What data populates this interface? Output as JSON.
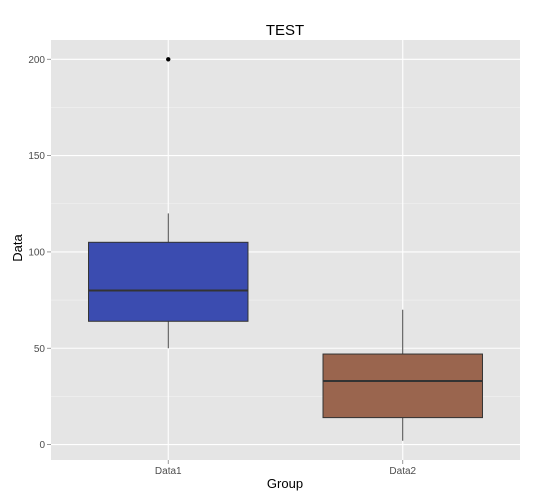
{
  "chart_data": {
    "type": "boxplot",
    "title": "TEST",
    "xlabel": "Group",
    "ylabel": "Data",
    "categories": [
      "Data1",
      "Data2"
    ],
    "ylim": [
      -8,
      210
    ],
    "yticks": [
      0,
      50,
      100,
      150,
      200
    ],
    "grid": true,
    "legend": "none",
    "boxes": [
      {
        "category": "Data1",
        "whisker_low": 50,
        "q1": 64,
        "median": 80,
        "q3": 105,
        "whisker_high": 120,
        "outliers": [
          200
        ],
        "fill": "#3B4CB0"
      },
      {
        "category": "Data2",
        "whisker_low": 2,
        "q1": 14,
        "median": 33,
        "q3": 47,
        "whisker_high": 70,
        "outliers": [],
        "fill": "#9A654E"
      }
    ]
  },
  "colors": {
    "panel_background": "#E5E5E5",
    "grid_major": "#FFFFFF",
    "grid_minor": "#F2F2F2",
    "box_outline": "#333333",
    "outlier": "#000000"
  }
}
